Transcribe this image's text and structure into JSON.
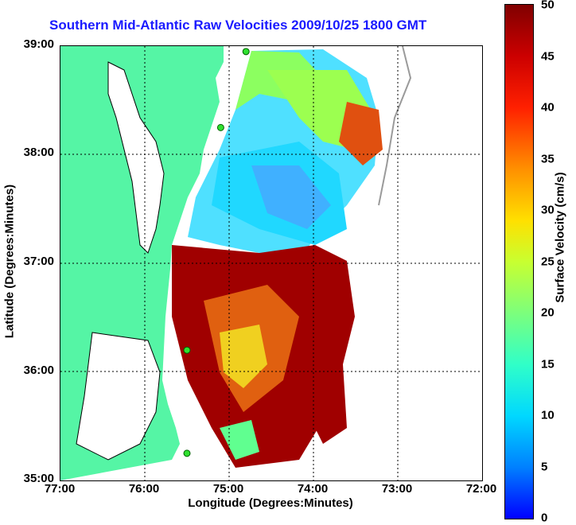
{
  "title": "Southern Mid-Atlantic Raw Velocities 2009/10/25 1800 GMT",
  "x_axis": {
    "label": "Longitude (Degrees:Minutes)",
    "ticks": [
      "77:00",
      "76:00",
      "75:00",
      "74:00",
      "73:00",
      "72:00"
    ],
    "range": [
      -77,
      -72
    ]
  },
  "y_axis": {
    "label": "Latitude (Degrees:Minutes)",
    "ticks": [
      "39:00",
      "38:00",
      "37:00",
      "36:00",
      "35:00"
    ],
    "range": [
      35,
      39
    ]
  },
  "colorbar": {
    "label": "Surface Velocity (cm/s)",
    "ticks": [
      "50",
      "45",
      "40",
      "35",
      "30",
      "25",
      "20",
      "15",
      "10",
      "5",
      "0"
    ],
    "range": [
      0,
      50
    ]
  },
  "colors": {
    "land": "#55f5a5",
    "ocean": "#ffffff",
    "title": "#1a1aff"
  },
  "grid": true,
  "sites": [
    {
      "lon": -74.8,
      "lat": 38.95
    },
    {
      "lon": -75.1,
      "lat": 38.25
    },
    {
      "lon": -75.5,
      "lat": 36.2
    },
    {
      "lon": -75.5,
      "lat": 35.25
    }
  ]
}
